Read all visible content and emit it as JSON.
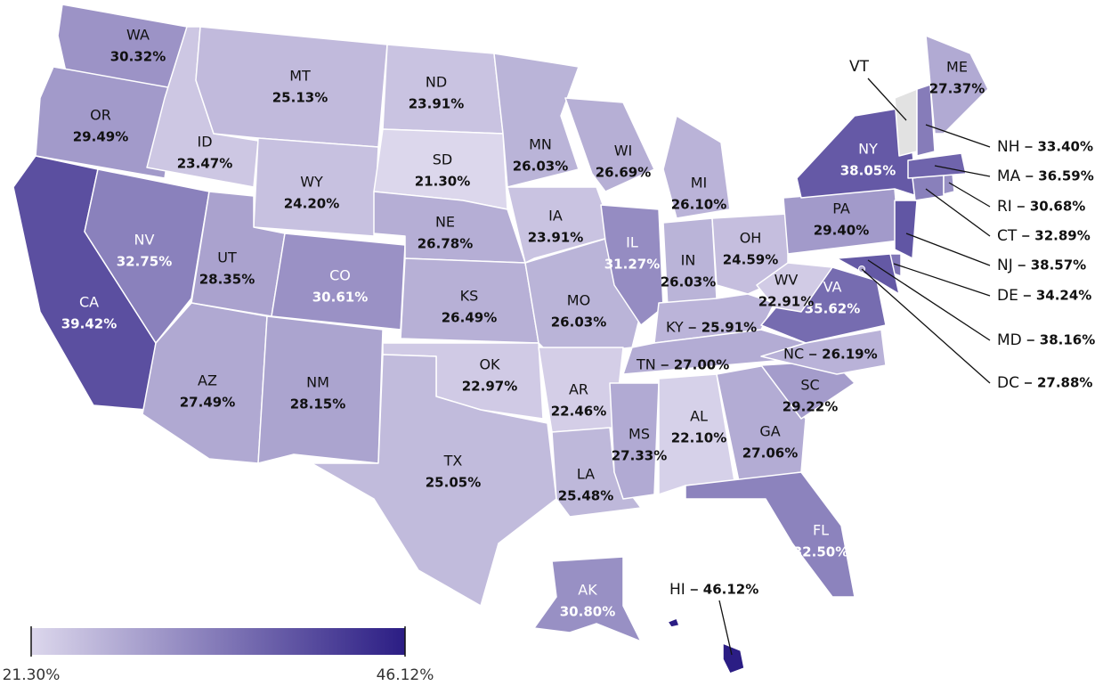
{
  "chart_data": {
    "type": "choropleth",
    "colors": [
      "#dcd7ec",
      "#2b1d84"
    ],
    "missing_color": "#e2e2e2",
    "clim": [
      21.3,
      46.12
    ],
    "cticks": [
      {
        "value": 21.3,
        "label": "21.30%"
      },
      {
        "value": 46.12,
        "label": "46.12%"
      }
    ],
    "regions": [
      {
        "name": "WA",
        "value": 30.32,
        "value_label": "30.32%"
      },
      {
        "name": "OR",
        "value": 29.49,
        "value_label": "29.49%"
      },
      {
        "name": "CA",
        "value": 39.42,
        "value_label": "39.42%"
      },
      {
        "name": "ID",
        "value": 23.47,
        "value_label": "23.47%"
      },
      {
        "name": "NV",
        "value": 32.75,
        "value_label": "32.75%"
      },
      {
        "name": "MT",
        "value": 25.13,
        "value_label": "25.13%"
      },
      {
        "name": "WY",
        "value": 24.2,
        "value_label": "24.20%"
      },
      {
        "name": "UT",
        "value": 28.35,
        "value_label": "28.35%"
      },
      {
        "name": "AZ",
        "value": 27.49,
        "value_label": "27.49%"
      },
      {
        "name": "CO",
        "value": 30.61,
        "value_label": "30.61%"
      },
      {
        "name": "NM",
        "value": 28.15,
        "value_label": "28.15%"
      },
      {
        "name": "ND",
        "value": 23.91,
        "value_label": "23.91%"
      },
      {
        "name": "SD",
        "value": 21.3,
        "value_label": "21.30%"
      },
      {
        "name": "NE",
        "value": 26.78,
        "value_label": "26.78%"
      },
      {
        "name": "KS",
        "value": 26.49,
        "value_label": "26.49%"
      },
      {
        "name": "OK",
        "value": 22.97,
        "value_label": "22.97%"
      },
      {
        "name": "TX",
        "value": 25.05,
        "value_label": "25.05%"
      },
      {
        "name": "MN",
        "value": 26.03,
        "value_label": "26.03%"
      },
      {
        "name": "IA",
        "value": 23.91,
        "value_label": "23.91%"
      },
      {
        "name": "MO",
        "value": 26.03,
        "value_label": "26.03%"
      },
      {
        "name": "AR",
        "value": 22.46,
        "value_label": "22.46%"
      },
      {
        "name": "LA",
        "value": 25.48,
        "value_label": "25.48%"
      },
      {
        "name": "WI",
        "value": 26.69,
        "value_label": "26.69%"
      },
      {
        "name": "IL",
        "value": 31.27,
        "value_label": "31.27%"
      },
      {
        "name": "MI",
        "value": 26.1,
        "value_label": "26.10%"
      },
      {
        "name": "IN",
        "value": 26.03,
        "value_label": "26.03%"
      },
      {
        "name": "OH",
        "value": 24.59,
        "value_label": "24.59%"
      },
      {
        "name": "KY",
        "value": 25.91,
        "value_label": "25.91%"
      },
      {
        "name": "TN",
        "value": 27.0,
        "value_label": "27.00%"
      },
      {
        "name": "MS",
        "value": 27.33,
        "value_label": "27.33%"
      },
      {
        "name": "AL",
        "value": 22.1,
        "value_label": "22.10%"
      },
      {
        "name": "GA",
        "value": 27.06,
        "value_label": "27.06%"
      },
      {
        "name": "FL",
        "value": 32.5,
        "value_label": "32.50%"
      },
      {
        "name": "SC",
        "value": 29.22,
        "value_label": "29.22%"
      },
      {
        "name": "NC",
        "value": 26.19,
        "value_label": "26.19%"
      },
      {
        "name": "VA",
        "value": 35.62,
        "value_label": "35.62%"
      },
      {
        "name": "WV",
        "value": 22.91,
        "value_label": "22.91%"
      },
      {
        "name": "PA",
        "value": 29.4,
        "value_label": "29.40%"
      },
      {
        "name": "NY",
        "value": 38.05,
        "value_label": "38.05%"
      },
      {
        "name": "NJ",
        "value": 38.57,
        "value_label": "38.57%"
      },
      {
        "name": "DE",
        "value": 34.24,
        "value_label": "34.24%"
      },
      {
        "name": "MD",
        "value": 38.16,
        "value_label": "38.16%"
      },
      {
        "name": "DC",
        "value": 27.88,
        "value_label": "27.88%"
      },
      {
        "name": "CT",
        "value": 32.89,
        "value_label": "32.89%"
      },
      {
        "name": "RI",
        "value": 30.68,
        "value_label": "30.68%"
      },
      {
        "name": "MA",
        "value": 36.59,
        "value_label": "36.59%"
      },
      {
        "name": "VT",
        "value": null
      },
      {
        "name": "NH",
        "value": 33.4,
        "value_label": "33.40%"
      },
      {
        "name": "ME",
        "value": 27.37,
        "value_label": "27.37%"
      },
      {
        "name": "AK",
        "value": 30.8,
        "value_label": "30.80%"
      },
      {
        "name": "HI",
        "value": 46.12,
        "value_label": "46.12%"
      }
    ]
  }
}
